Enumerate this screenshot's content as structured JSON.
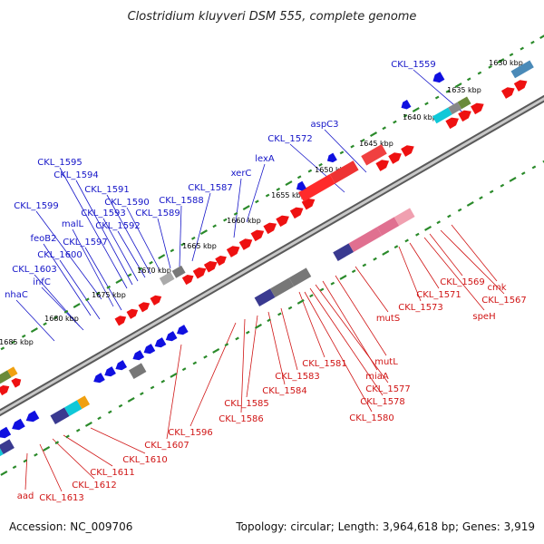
{
  "title": "Clostridium kluyveri DSM 555, complete genome",
  "footer": {
    "accession": "Accession: NC_009706",
    "topology": "Topology: circular; Length: 3,964,618 bp; Genes: 3,919"
  },
  "colors": {
    "backbone": "#8a8a8a",
    "tick": "#2a8a2a",
    "blue_gene": "#1010e0",
    "red_gene": "#ee1111",
    "blue_label": "#1515c8",
    "red_label": "#d01515"
  },
  "kbp_labels": [
    "1630 kbp",
    "1635 kbp",
    "1640 kbp",
    "1645 kbp",
    "1650 kbp",
    "1655 kbp",
    "1660 kbp",
    "1665 kbp",
    "1670 kbp",
    "1675 kbp",
    "1680 kbp",
    "1685 kbp"
  ],
  "blue_labels": [
    "CKL_1559",
    "aspC3",
    "CKL_1572",
    "lexA",
    "xerC",
    "CKL_1587",
    "CKL_1588",
    "CKL_1589",
    "CKL_1590",
    "CKL_1591",
    "CKL_1592",
    "CKL_1593",
    "CKL_1594",
    "CKL_1595",
    "CKL_1599",
    "malL",
    "CKL_1597",
    "feoB2",
    "CKL_1600",
    "CKL_1603",
    "infC",
    "nhaC"
  ],
  "red_labels": [
    "cmk",
    "CKL_1567",
    "CKL_1569",
    "speH",
    "CKL_1571",
    "CKL_1573",
    "mutS",
    "mutL",
    "CKL_1581",
    "miaA",
    "CKL_1577",
    "CKL_1578",
    "CKL_1580",
    "CKL_1583",
    "CKL_1584",
    "CKL_1585",
    "CKL_1586",
    "CKL_1596",
    "CKL_1607",
    "CKL_1610",
    "CKL_1611",
    "CKL_1612",
    "CKL_1613",
    "aad"
  ]
}
